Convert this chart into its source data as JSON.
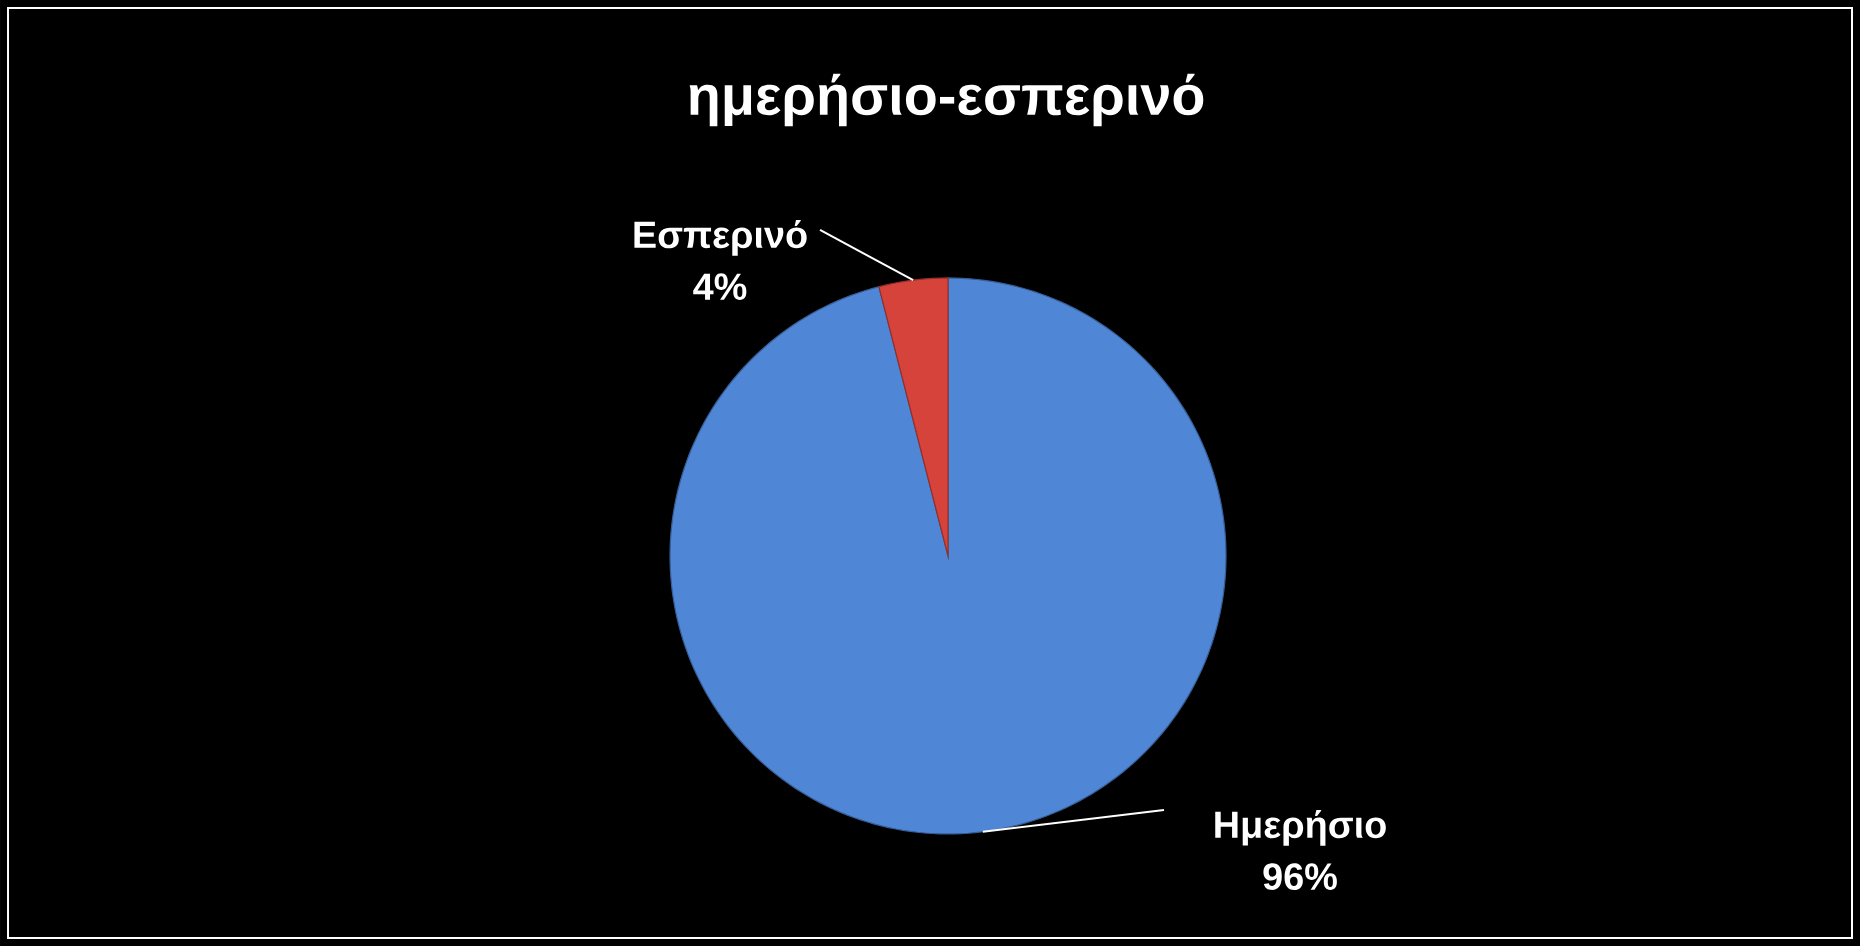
{
  "chart_data": {
    "type": "pie",
    "title": "ημερήσιο-εσπερινό",
    "categories": [
      "Ημερήσιο",
      "Εσπερινό"
    ],
    "values": [
      96,
      4
    ],
    "value_labels": [
      "96%",
      "4%"
    ],
    "colors": [
      "#4f86d6",
      "#d6433a"
    ]
  }
}
